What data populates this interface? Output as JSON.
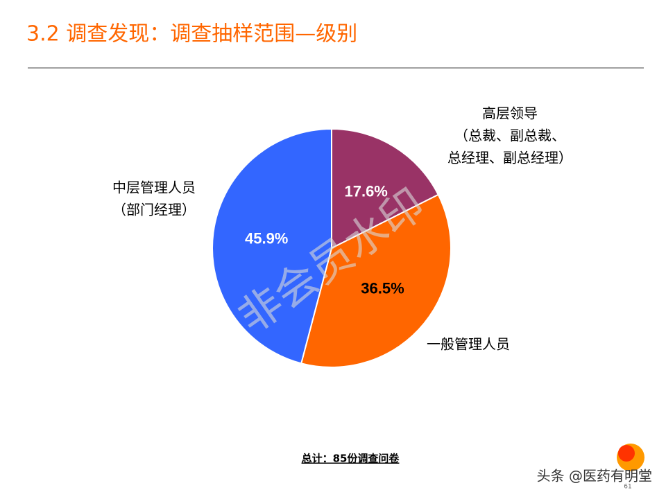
{
  "header": {
    "title": "3.2 调查发现：调查抽样范围—级别"
  },
  "chart_data": {
    "type": "pie",
    "categories": [
      [
        "高层领导",
        "（总裁、副总裁、",
        "总经理、副总经理）"
      ],
      [
        "一般管理人员"
      ],
      [
        "中层管理人员",
        "（部门经理）"
      ]
    ],
    "values": [
      17.6,
      36.5,
      45.9
    ],
    "value_labels": [
      "17.6%",
      "36.5%",
      "45.9%"
    ],
    "colors": [
      "#993366",
      "#ff6600",
      "#3366ff"
    ],
    "note": "总计：85份调查问卷"
  },
  "watermark": "非会员水印",
  "footer": {
    "credit": "头条 @医药有明堂",
    "page": "61"
  }
}
